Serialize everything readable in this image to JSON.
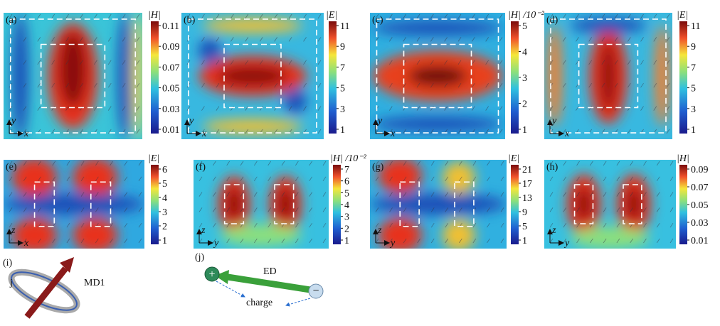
{
  "panels": [
    {
      "label": "(a)",
      "colorbar_title": "|H|",
      "ticks": [
        "0.11",
        "0.09",
        "0.07",
        "0.05",
        "0.03",
        "0.01"
      ],
      "axes": [
        "y",
        "x"
      ]
    },
    {
      "label": "(b)",
      "colorbar_title": "|E|",
      "ticks": [
        "11",
        "9",
        "7",
        "5",
        "3",
        "1"
      ],
      "axes": [
        "y",
        "x"
      ]
    },
    {
      "label": "(c)",
      "colorbar_title": "|H| /10⁻²",
      "ticks": [
        "5",
        "4",
        "3",
        "2",
        "1"
      ],
      "axes": [
        "y",
        "x"
      ]
    },
    {
      "label": "(d)",
      "colorbar_title": "|E|",
      "ticks": [
        "11",
        "9",
        "7",
        "5",
        "3",
        "1"
      ],
      "axes": [
        "y",
        "x"
      ]
    },
    {
      "label": "(e)",
      "colorbar_title": "|E|",
      "ticks": [
        "6",
        "5",
        "4",
        "3",
        "2",
        "1"
      ],
      "axes": [
        "z",
        "x"
      ]
    },
    {
      "label": "(f)",
      "colorbar_title": "|H| /10⁻²",
      "ticks": [
        "7",
        "6",
        "5",
        "4",
        "3",
        "2",
        "1"
      ],
      "axes": [
        "z",
        "y"
      ]
    },
    {
      "label": "(g)",
      "colorbar_title": "|E|",
      "ticks": [
        "21",
        "17",
        "13",
        "9",
        "5",
        "1"
      ],
      "axes": [
        "z",
        "y"
      ]
    },
    {
      "label": "(h)",
      "colorbar_title": "|H|",
      "ticks": [
        "0.09",
        "0.07",
        "0.05",
        "0.03",
        "0.01"
      ],
      "axes": [
        "z",
        "y"
      ]
    }
  ],
  "schematic_i": {
    "label": "(i)",
    "current": "j",
    "dipole": "MD1"
  },
  "schematic_j": {
    "label": "(j)",
    "dipole": "ED",
    "charge": "charge"
  }
}
